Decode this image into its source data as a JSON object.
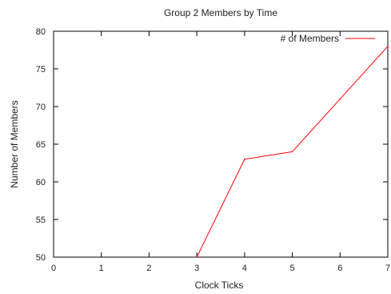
{
  "chart_data": {
    "type": "line",
    "title": "Group 2 Members by Time",
    "xlabel": "Clock Ticks",
    "ylabel": "Number of Members",
    "xlim": [
      0,
      7
    ],
    "ylim": [
      50,
      80
    ],
    "xticks": [
      0,
      1,
      2,
      3,
      4,
      5,
      6,
      7
    ],
    "yticks": [
      50,
      55,
      60,
      65,
      70,
      75,
      80
    ],
    "grid": false,
    "legend_position": "top-right",
    "series": [
      {
        "name": "# of Members",
        "color": "#ff0000",
        "x": [
          3,
          4,
          5,
          6,
          7
        ],
        "y": [
          50,
          63,
          64,
          71,
          78
        ]
      }
    ]
  }
}
